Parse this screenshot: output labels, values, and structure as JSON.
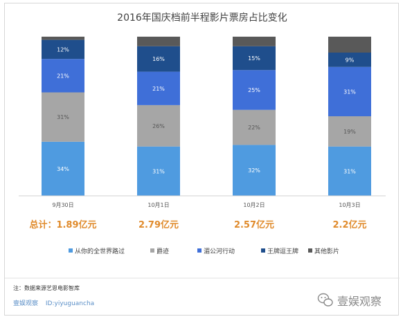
{
  "chart_data": {
    "type": "bar",
    "stacked": true,
    "title": "2016年国庆档前半程影片票房占比变化",
    "categories": [
      "9月30日",
      "10月1日",
      "10月2日",
      "10月3日"
    ],
    "series": [
      {
        "name": "从你的全世界路过",
        "color": "#4f9be0",
        "values": [
          34,
          31,
          32,
          31
        ]
      },
      {
        "name": "爵迹",
        "color": "#a6a6a6",
        "values": [
          31,
          26,
          22,
          19
        ]
      },
      {
        "name": "湄公河行动",
        "color": "#3f6fd8",
        "values": [
          21,
          21,
          25,
          31
        ]
      },
      {
        "name": "王牌逗王牌",
        "color": "#1f4e8c",
        "values": [
          12,
          16,
          15,
          9
        ]
      },
      {
        "name": "其他影片",
        "color": "#595959",
        "values": [
          2,
          6,
          6,
          10
        ]
      }
    ],
    "value_labels": [
      [
        "34%",
        "31%",
        "21%",
        "12%",
        null
      ],
      [
        "31%",
        "26%",
        "21%",
        "16%",
        null
      ],
      [
        "32%",
        "22%",
        "25%",
        "15%",
        null
      ],
      [
        "31%",
        "19%",
        "31%",
        "9%",
        null
      ]
    ],
    "totals": [
      "总计：1.89亿元",
      "2.79亿元",
      "2.57亿元",
      "2.2亿元"
    ],
    "ylim": [
      0,
      100
    ],
    "legend_position": "bottom",
    "grid": false
  },
  "footer": {
    "note": "注：数据来源艺恩电影智库",
    "brand": "壹娱观察",
    "brand_id": "ID:yiyuguancha",
    "watermark": "壹娱观察"
  }
}
